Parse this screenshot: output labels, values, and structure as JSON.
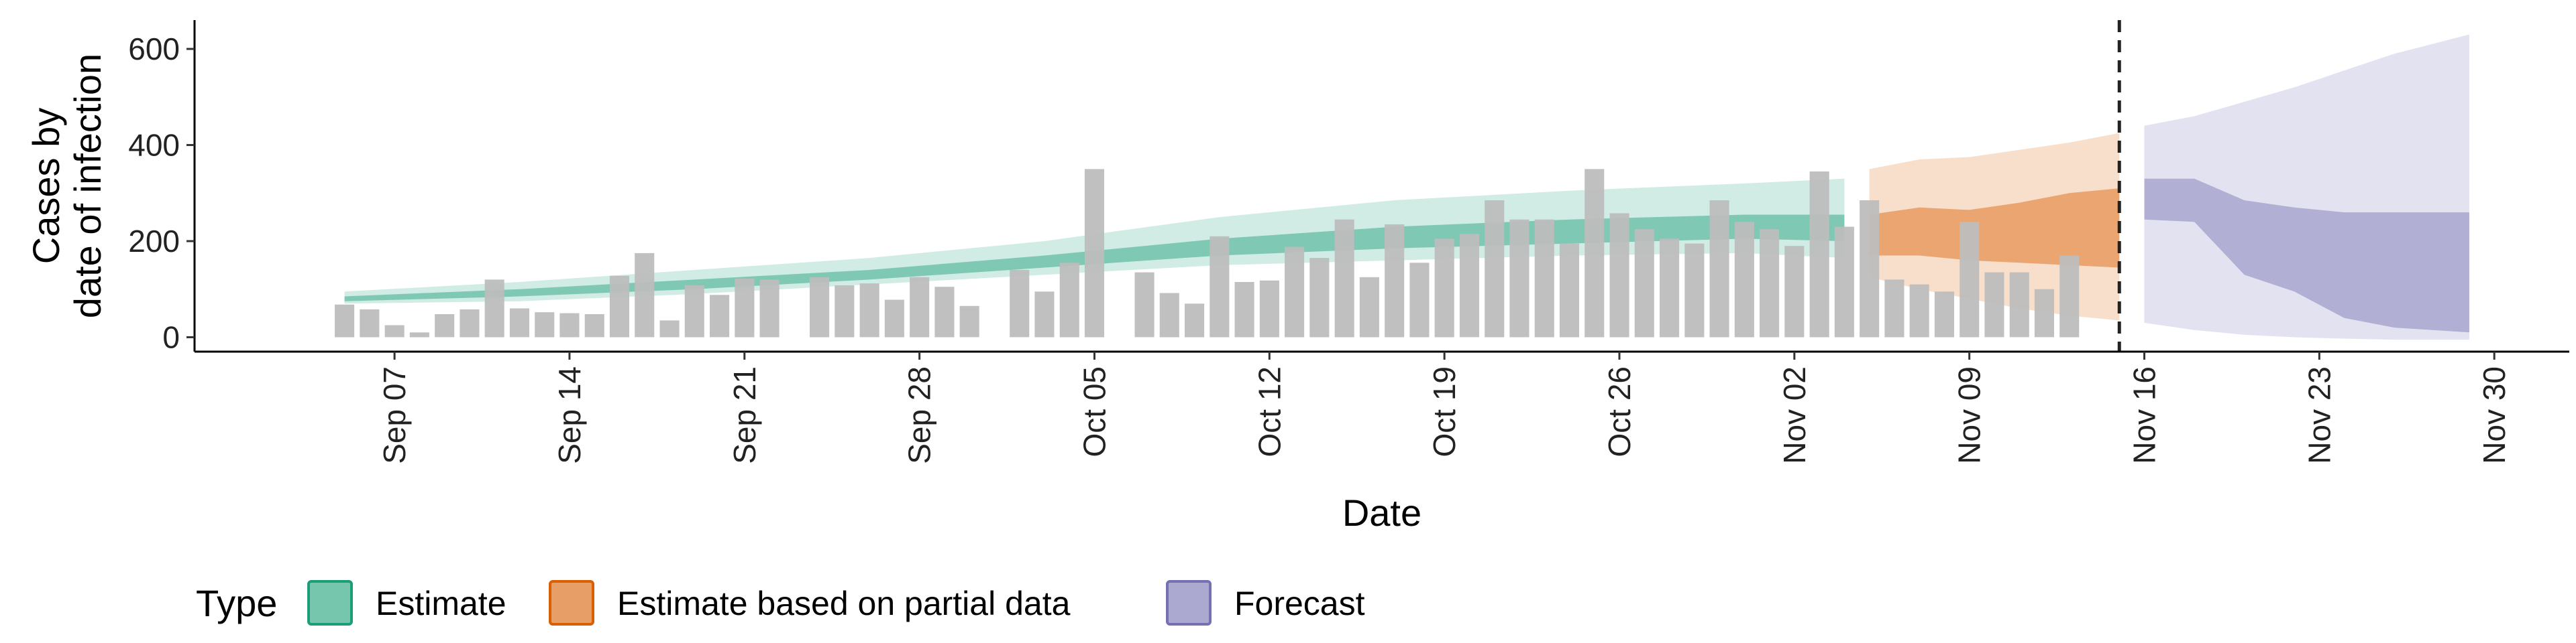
{
  "chart_data": {
    "type": "bar+area",
    "xlabel": "Date",
    "ylabel_lines": [
      "Cases by",
      "date of infection"
    ],
    "yticks": [
      0,
      200,
      400,
      600
    ],
    "ylim": [
      -30,
      660
    ],
    "xlim": [
      "2020-08-30",
      "2020-12-03"
    ],
    "xticks": [
      {
        "date": "2020-09-07",
        "label": "Sep 07"
      },
      {
        "date": "2020-09-14",
        "label": "Sep 14"
      },
      {
        "date": "2020-09-21",
        "label": "Sep 21"
      },
      {
        "date": "2020-09-28",
        "label": "Sep 28"
      },
      {
        "date": "2020-10-05",
        "label": "Oct 05"
      },
      {
        "date": "2020-10-12",
        "label": "Oct 12"
      },
      {
        "date": "2020-10-19",
        "label": "Oct 19"
      },
      {
        "date": "2020-10-26",
        "label": "Oct 26"
      },
      {
        "date": "2020-11-02",
        "label": "Nov 02"
      },
      {
        "date": "2020-11-09",
        "label": "Nov 09"
      },
      {
        "date": "2020-11-16",
        "label": "Nov 16"
      },
      {
        "date": "2020-11-23",
        "label": "Nov 23"
      },
      {
        "date": "2020-11-30",
        "label": "Nov 30"
      }
    ],
    "bars": {
      "color": "#bdbdbd",
      "start_date": "2020-09-05",
      "values": [
        68,
        58,
        25,
        10,
        48,
        58,
        120,
        60,
        52,
        50,
        48,
        128,
        175,
        35,
        108,
        88,
        122,
        120,
        0,
        125,
        108,
        112,
        78,
        125,
        105,
        65,
        0,
        140,
        95,
        155,
        350,
        0,
        135,
        92,
        70,
        210,
        115,
        118,
        188,
        165,
        245,
        125,
        235,
        155,
        205,
        215,
        285,
        245,
        245,
        195,
        350,
        258,
        225,
        205,
        195,
        285,
        240,
        225,
        190,
        345,
        230,
        285,
        120,
        110,
        95,
        240,
        135,
        135,
        100,
        170
      ]
    },
    "forecast_boundary_date": "2020-11-15",
    "series": [
      {
        "name": "Estimate",
        "color": "#1b9e77",
        "dates": [
          "2020-09-05",
          "2020-09-12",
          "2020-09-19",
          "2020-09-26",
          "2020-10-03",
          "2020-10-10",
          "2020-10-17",
          "2020-10-24",
          "2020-10-31",
          "2020-11-04"
        ],
        "outer_upper": [
          95,
          115,
          140,
          165,
          200,
          250,
          285,
          305,
          320,
          330
        ],
        "outer_lower": [
          70,
          75,
          90,
          110,
          130,
          150,
          160,
          170,
          175,
          165
        ],
        "inner_upper": [
          85,
          100,
          120,
          140,
          170,
          205,
          230,
          245,
          255,
          255
        ],
        "inner_lower": [
          75,
          85,
          100,
          120,
          145,
          170,
          185,
          195,
          205,
          200
        ]
      },
      {
        "name": "Estimate based on partial data",
        "color": "#d95f02",
        "dates": [
          "2020-11-05",
          "2020-11-07",
          "2020-11-09",
          "2020-11-11",
          "2020-11-13",
          "2020-11-15"
        ],
        "outer_upper": [
          350,
          370,
          375,
          390,
          405,
          425
        ],
        "outer_lower": [
          125,
          100,
          80,
          60,
          45,
          35
        ],
        "inner_upper": [
          255,
          270,
          265,
          280,
          300,
          310
        ],
        "inner_lower": [
          170,
          170,
          160,
          155,
          150,
          145
        ]
      },
      {
        "name": "Forecast",
        "color": "#7570b3",
        "dates": [
          "2020-11-16",
          "2020-11-18",
          "2020-11-20",
          "2020-11-22",
          "2020-11-24",
          "2020-11-26",
          "2020-11-29"
        ],
        "outer_upper": [
          440,
          460,
          490,
          520,
          555,
          590,
          630
        ],
        "outer_lower": [
          30,
          15,
          5,
          0,
          -3,
          -5,
          -5
        ],
        "inner_upper": [
          330,
          330,
          285,
          270,
          260,
          260,
          260
        ],
        "inner_lower": [
          245,
          240,
          130,
          95,
          40,
          20,
          10
        ]
      }
    ],
    "legend": {
      "title": "Type",
      "position": "bottom-left",
      "entries": [
        "Estimate",
        "Estimate based on partial data",
        "Forecast"
      ]
    }
  }
}
